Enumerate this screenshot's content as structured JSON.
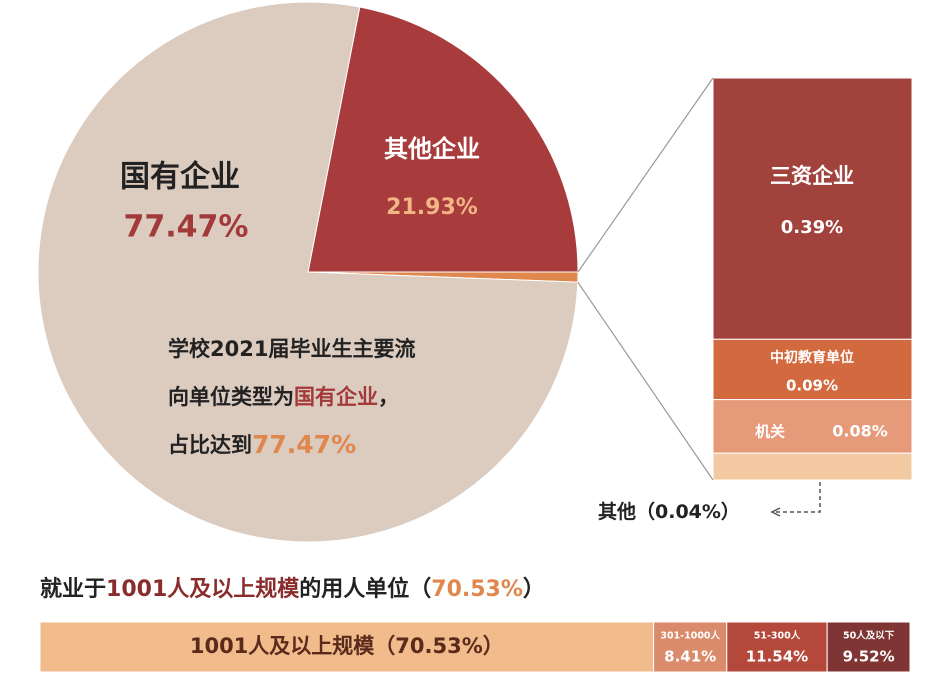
{
  "chart_data": [
    {
      "type": "pie",
      "categories": [
        "国有企业",
        "其他企业"
      ],
      "values": [
        77.47,
        21.93
      ],
      "value_labels": [
        "77.47%",
        "21.93%"
      ],
      "colors": [
        "#dccbbf",
        "#a83b3b"
      ],
      "breakdown_color": "#e0874e",
      "breakdown": {
        "categories": [
          "三资企业",
          "中初教育单位",
          "机关",
          "其他"
        ],
        "values": [
          0.39,
          0.09,
          0.08,
          0.04
        ],
        "value_labels": [
          "0.39%",
          "0.09%",
          "0.08%",
          "（0.04%）"
        ],
        "colors": [
          "#a2423c",
          "#d2693f",
          "#e69a7a",
          "#f3c9a1"
        ]
      },
      "annotation": [
        [
          "学校2021届毕业生主要流"
        ],
        [
          "向单位类型为",
          "国有企业",
          "，"
        ],
        [
          "占比达到",
          "77.47%"
        ]
      ]
    },
    {
      "type": "stacked-bar",
      "title": [
        "就业于",
        "1001人及以上规模",
        "的用人单位（",
        "70.53%",
        "）"
      ],
      "categories": [
        "1001人及以上规模",
        "301-1000人",
        "51-300人",
        "50人及以下"
      ],
      "values": [
        70.53,
        8.41,
        11.54,
        9.52
      ],
      "value_labels": [
        "（70.53%）",
        "8.41%",
        "11.54%",
        "9.52%"
      ],
      "colors": [
        "#f1bb8c",
        "#d98b6c",
        "#b3483b",
        "#7f3533"
      ]
    }
  ]
}
